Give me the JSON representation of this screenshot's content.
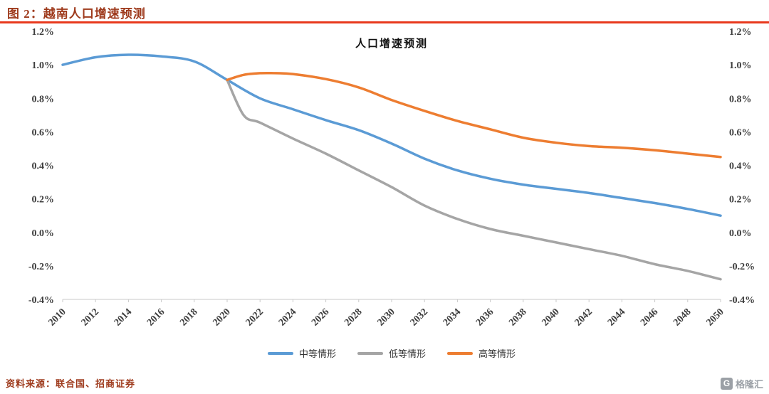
{
  "header": {
    "title": "图 2：越南人口增速预测"
  },
  "colors": {
    "accent_text": "#9e3a1c",
    "rule": "#e8391d",
    "axis_label": "#3d3d3d",
    "axis_line": "#c9c9c9"
  },
  "chart_data": {
    "type": "line",
    "title": "人口增速预测",
    "xlabel": "",
    "ylabel": "",
    "ylim": [
      -0.4,
      1.2
    ],
    "y_tick_values": [
      1.2,
      1.0,
      0.8,
      0.6,
      0.4,
      0.2,
      0.0,
      -0.2,
      -0.4
    ],
    "y_tick_labels": [
      "1.2%",
      "1.0%",
      "0.8%",
      "0.6%",
      "0.4%",
      "0.2%",
      "0.0%",
      "-0.2%",
      "-0.4%"
    ],
    "x_ticks": [
      2010,
      2012,
      2014,
      2016,
      2018,
      2020,
      2022,
      2024,
      2026,
      2028,
      2030,
      2032,
      2034,
      2036,
      2038,
      2040,
      2042,
      2044,
      2046,
      2048,
      2050
    ],
    "grid": false,
    "legend_position": "bottom",
    "y_axis_sides": [
      "left",
      "right"
    ],
    "series": [
      {
        "name": "中等情形",
        "color": "#5b9bd5",
        "x": [
          2010,
          2012,
          2014,
          2016,
          2018,
          2020,
          2022,
          2024,
          2026,
          2028,
          2030,
          2032,
          2034,
          2036,
          2038,
          2040,
          2042,
          2044,
          2046,
          2048,
          2050
        ],
        "values": [
          1.0,
          1.045,
          1.06,
          1.05,
          1.02,
          0.91,
          0.8,
          0.735,
          0.67,
          0.61,
          0.53,
          0.44,
          0.37,
          0.32,
          0.285,
          0.26,
          0.235,
          0.205,
          0.175,
          0.14,
          0.1
        ]
      },
      {
        "name": "低等情形",
        "color": "#a5a5a5",
        "x": [
          2020,
          2021,
          2022,
          2024,
          2026,
          2028,
          2030,
          2032,
          2034,
          2036,
          2038,
          2040,
          2042,
          2044,
          2046,
          2048,
          2050
        ],
        "values": [
          0.91,
          0.7,
          0.655,
          0.56,
          0.47,
          0.37,
          0.27,
          0.16,
          0.08,
          0.02,
          -0.02,
          -0.06,
          -0.1,
          -0.14,
          -0.19,
          -0.23,
          -0.28
        ]
      },
      {
        "name": "高等情形",
        "color": "#ed7d31",
        "x": [
          2020,
          2021,
          2022,
          2023,
          2024,
          2026,
          2028,
          2030,
          2032,
          2034,
          2036,
          2038,
          2040,
          2042,
          2044,
          2046,
          2048,
          2050
        ],
        "values": [
          0.91,
          0.94,
          0.95,
          0.95,
          0.945,
          0.915,
          0.865,
          0.79,
          0.725,
          0.665,
          0.615,
          0.565,
          0.535,
          0.515,
          0.505,
          0.49,
          0.47,
          0.45
        ]
      }
    ]
  },
  "footer": {
    "source": "资料来源：联合国、招商证券",
    "logo_letter": "G",
    "logo_text": "格隆汇"
  }
}
